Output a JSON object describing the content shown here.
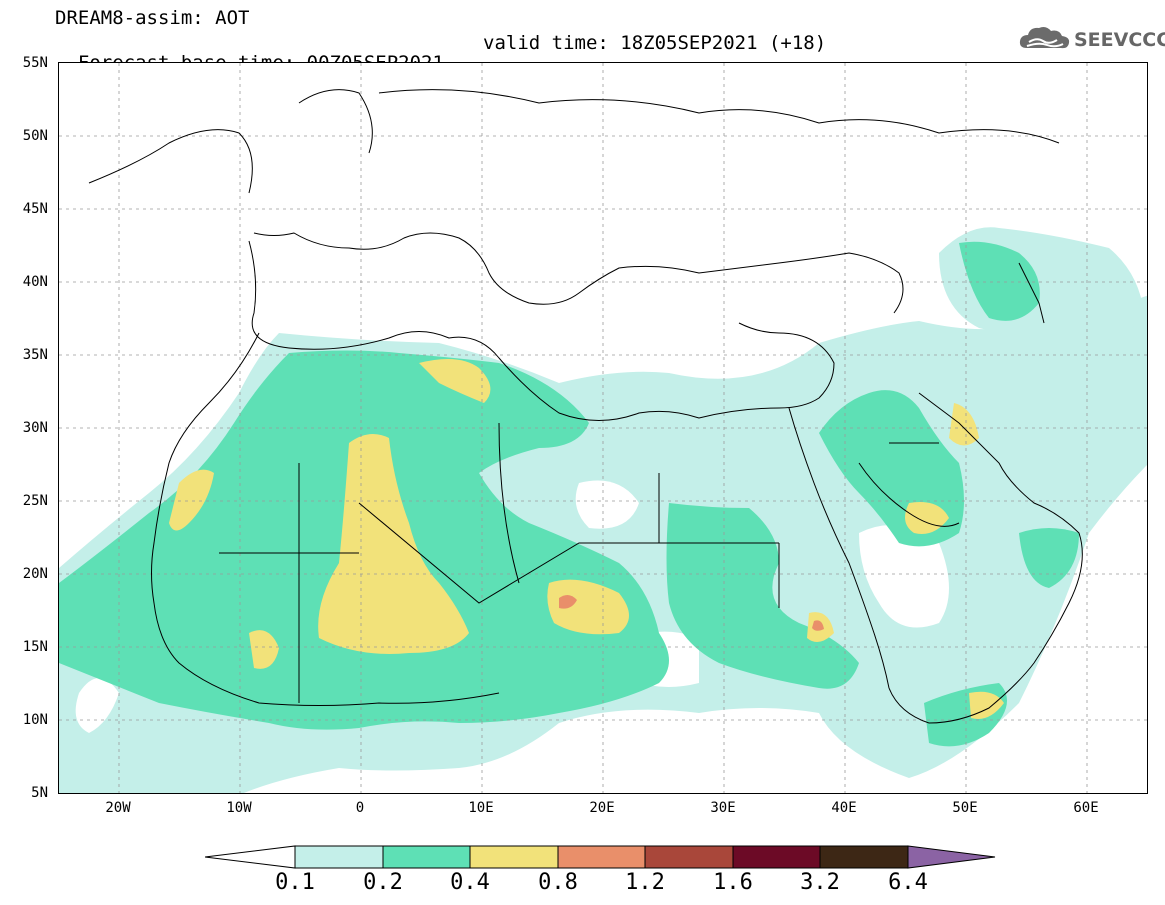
{
  "header": {
    "line1": "DREAM8-assim: AOT",
    "line2_left": "Forecast base time: 00Z05SEP2021",
    "line2_right": "valid time: 18Z05SEP2021 (+18)"
  },
  "logo": {
    "text": "SEEVCCC",
    "icon": "cloud-icon"
  },
  "map": {
    "variable": "AOT",
    "lat_range": [
      "5N",
      "55N"
    ],
    "lon_range": [
      "25W",
      "65E"
    ],
    "y_ticks": [
      "55N",
      "50N",
      "45N",
      "40N",
      "35N",
      "30N",
      "25N",
      "20N",
      "15N",
      "10N",
      "5N"
    ],
    "x_ticks": [
      "20W",
      "10W",
      "0",
      "10E",
      "20E",
      "30E",
      "40E",
      "50E",
      "60E"
    ]
  },
  "colorbar": {
    "ticks": [
      "0.1",
      "0.2",
      "0.4",
      "0.8",
      "1.2",
      "1.6",
      "3.2",
      "6.4"
    ],
    "bins": [
      {
        "from": "0.1",
        "to": "0.2",
        "color": "#c4efe9"
      },
      {
        "from": "0.2",
        "to": "0.4",
        "color": "#5ee0b5"
      },
      {
        "from": "0.4",
        "to": "0.8",
        "color": "#f2e27a"
      },
      {
        "from": "0.8",
        "to": "1.2",
        "color": "#e98f6a"
      },
      {
        "from": "1.2",
        "to": "1.6",
        "color": "#a9473a"
      },
      {
        "from": "1.6",
        "to": "3.2",
        "color": "#6c0a26"
      },
      {
        "from": "3.2",
        "to": "6.4",
        "color": "#3d2715"
      }
    ],
    "under_color": "#ffffff",
    "over_color": "#8b63a4"
  }
}
